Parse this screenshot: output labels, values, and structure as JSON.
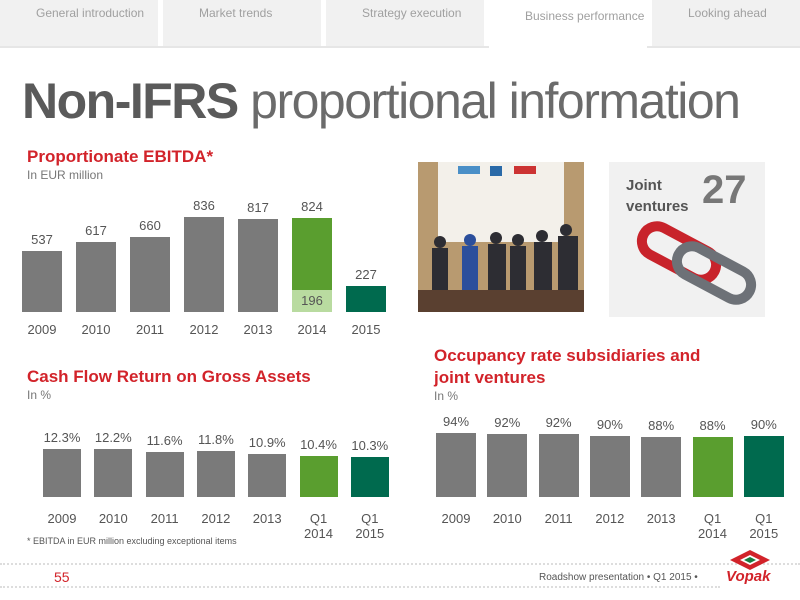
{
  "nav": [
    "General introduction",
    "Market trends",
    "Strategy execution",
    "Business performance",
    "Looking ahead"
  ],
  "nav_active": 3,
  "title": {
    "bold": "Non-IFRS",
    "rest": "proportional information"
  },
  "joint_ventures": {
    "label": "Joint ventures",
    "count": 27
  },
  "footnote": "* EBITDA in EUR million excluding exceptional items",
  "footer": {
    "page": "55",
    "presentation": "Roadshow presentation",
    "period": "Q1 2015",
    "logo": "Vopak"
  },
  "chart_data": [
    {
      "type": "bar",
      "title": "Proportionate EBITDA*",
      "subtitle": "In EUR million",
      "categories": [
        "2009",
        "2010",
        "2011",
        "2012",
        "2013",
        "2014",
        "2015"
      ],
      "values": [
        537,
        617,
        660,
        836,
        817,
        824,
        227
      ],
      "colors": [
        "#7a7a7a",
        "#7a7a7a",
        "#7a7a7a",
        "#7a7a7a",
        "#7a7a7a",
        "#5a9e2f",
        "#006a4e"
      ],
      "inner_values": [
        null,
        null,
        null,
        null,
        null,
        196,
        null
      ],
      "inner_color": "#b9dba0"
    },
    {
      "type": "bar",
      "title": "Cash Flow Return on Gross Assets",
      "subtitle": "In %",
      "categories": [
        "2009",
        "2010",
        "2011",
        "2012",
        "2013",
        "Q1 2014",
        "Q1 2015"
      ],
      "values": [
        12.3,
        12.2,
        11.6,
        11.8,
        10.9,
        10.4,
        10.3
      ],
      "value_labels": [
        "12.3%",
        "12.2%",
        "11.6%",
        "11.8%",
        "10.9%",
        "10.4%",
        "10.3%"
      ],
      "colors": [
        "#7a7a7a",
        "#7a7a7a",
        "#7a7a7a",
        "#7a7a7a",
        "#7a7a7a",
        "#5a9e2f",
        "#006a4e"
      ]
    },
    {
      "type": "bar",
      "title": "Occupancy rate subsidiaries and joint ventures",
      "subtitle": "In %",
      "categories": [
        "2009",
        "2010",
        "2011",
        "2012",
        "2013",
        "Q1 2014",
        "Q1 2015"
      ],
      "values": [
        94,
        92,
        92,
        90,
        88,
        88,
        90
      ],
      "value_labels": [
        "94%",
        "92%",
        "92%",
        "90%",
        "88%",
        "88%",
        "90%"
      ],
      "colors": [
        "#7a7a7a",
        "#7a7a7a",
        "#7a7a7a",
        "#7a7a7a",
        "#7a7a7a",
        "#5a9e2f",
        "#006a4e"
      ]
    }
  ]
}
